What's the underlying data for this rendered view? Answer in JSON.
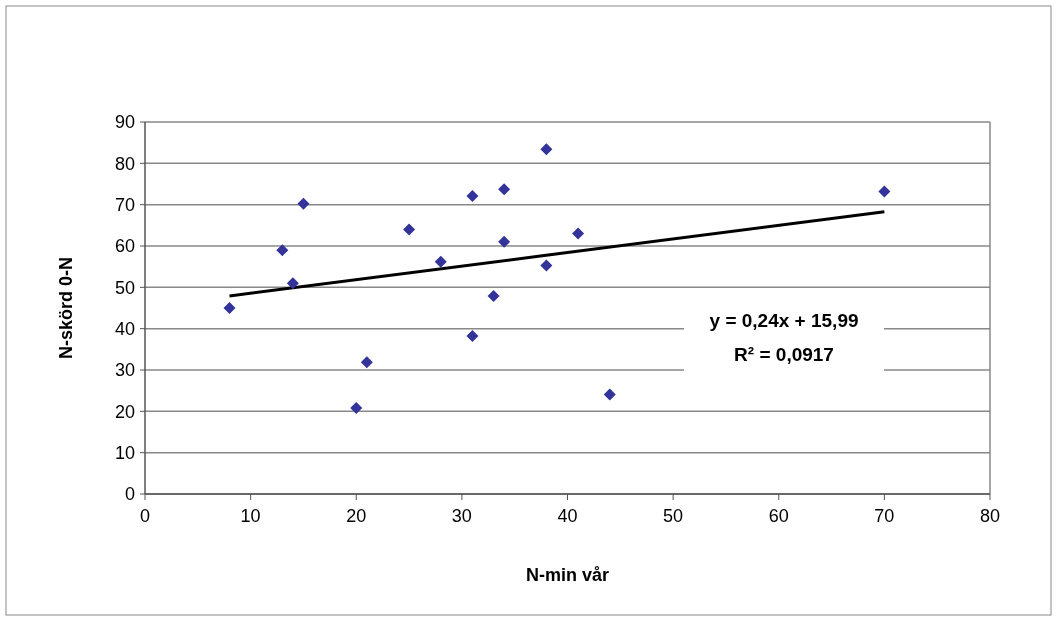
{
  "chart_data": {
    "type": "scatter",
    "xlabel": "N-min vår",
    "ylabel": "N-skörd 0-N",
    "xlim": [
      0,
      80
    ],
    "xticks": [
      0,
      10,
      20,
      30,
      40,
      50,
      60,
      70,
      80
    ],
    "ylim": [
      0,
      90
    ],
    "yticks": [
      0,
      10,
      20,
      30,
      40,
      50,
      60,
      70,
      80,
      90
    ],
    "grid": "y",
    "annotations": [
      "y = 0,24x + 15,99",
      "R² = 0,0917"
    ],
    "series": [
      {
        "marker": "diamond",
        "color": "#333399",
        "x": [
          8,
          13,
          14,
          15,
          20,
          21,
          25,
          28,
          31,
          31,
          33,
          34,
          34,
          38,
          38,
          41,
          44,
          70
        ],
        "values": [
          45,
          59,
          51,
          70.2,
          20.8,
          31.9,
          64,
          56.2,
          72.1,
          38.2,
          47.9,
          73.7,
          61,
          83.4,
          55.3,
          63,
          24.1,
          73.2
        ]
      },
      {
        "type": "line",
        "color": "#000000",
        "x": [
          8,
          70
        ],
        "values": [
          47.9,
          68.3
        ]
      }
    ]
  }
}
